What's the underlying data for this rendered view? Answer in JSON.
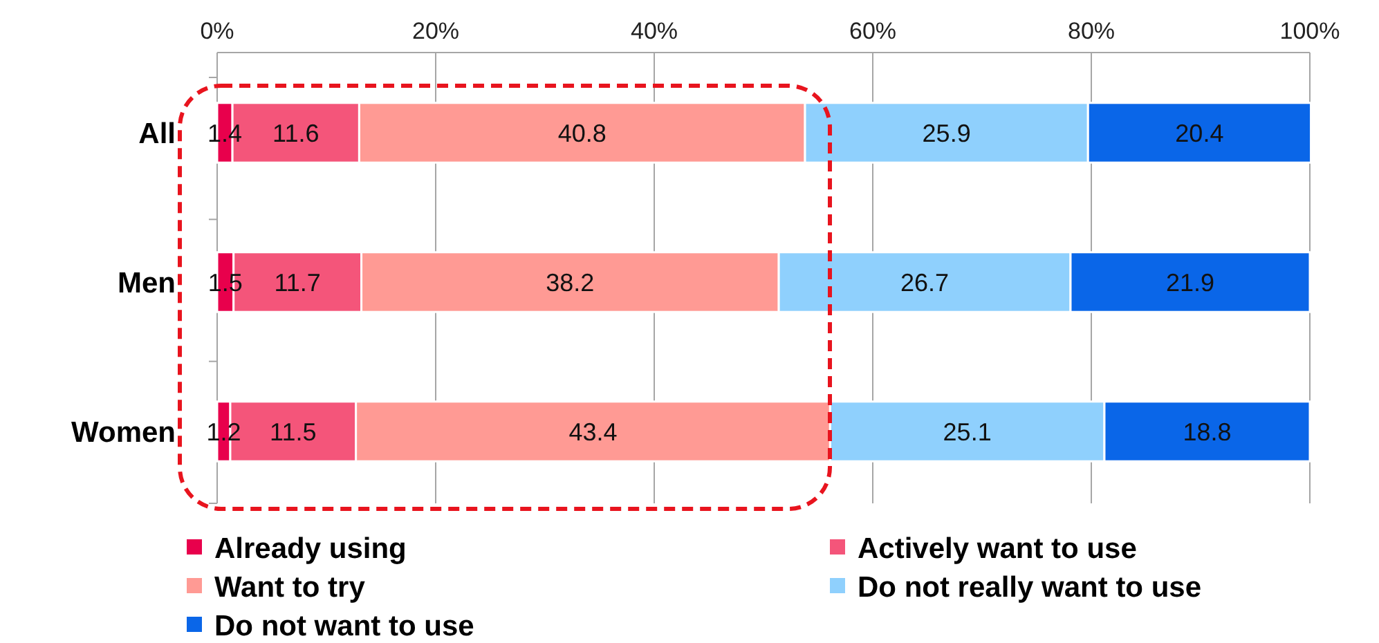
{
  "chart_data": {
    "type": "bar",
    "orientation": "horizontal",
    "stacked": true,
    "categories": [
      "All",
      "Men",
      "Women"
    ],
    "series": [
      {
        "name": "Already using",
        "color": "#e8004c",
        "values": [
          1.4,
          1.5,
          1.2
        ]
      },
      {
        "name": "Actively want to use",
        "color": "#f4557a",
        "values": [
          11.6,
          11.7,
          11.5
        ]
      },
      {
        "name": "Want to try",
        "color": "#ff9a94",
        "values": [
          40.8,
          38.2,
          43.4
        ]
      },
      {
        "name": "Do not really want to use",
        "color": "#8fd0fd",
        "values": [
          25.9,
          26.7,
          25.1
        ]
      },
      {
        "name": "Do not want to use",
        "color": "#0a66e8",
        "values": [
          20.4,
          21.9,
          18.8
        ]
      }
    ],
    "xlim": [
      0,
      100
    ],
    "xticks": [
      {
        "value": 0,
        "label": "0%"
      },
      {
        "value": 20,
        "label": "20%"
      },
      {
        "value": 40,
        "label": "40%"
      },
      {
        "value": 60,
        "label": "60%"
      },
      {
        "value": 80,
        "label": "80%"
      },
      {
        "value": 100,
        "label": "100%"
      }
    ],
    "grid": "x",
    "data_labels": true,
    "legend": "bottom"
  }
}
